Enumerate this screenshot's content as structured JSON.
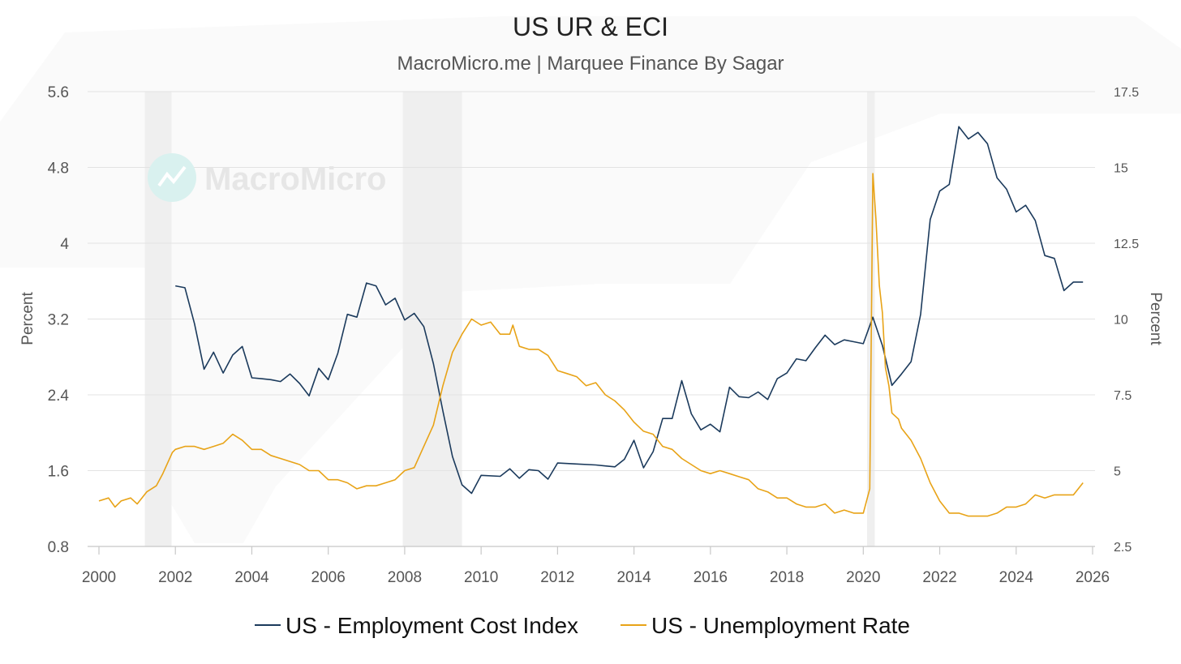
{
  "chart_data": {
    "type": "line",
    "title": "US UR & ECI",
    "subtitle": "MacroMicro.me | Marquee Finance By Sagar",
    "watermark": "MacroMicro",
    "xlabel": "",
    "xlim": [
      2000,
      2026
    ],
    "x_ticks": [
      "2000",
      "2002",
      "2004",
      "2006",
      "2008",
      "2010",
      "2012",
      "2014",
      "2016",
      "2018",
      "2020",
      "2022",
      "2024",
      "2026"
    ],
    "y_left": {
      "label": "Percent",
      "ylim": [
        0.8,
        5.6
      ],
      "ticks": [
        "0.8",
        "1.6",
        "2.4",
        "3.2",
        "4",
        "4.8",
        "5.6"
      ]
    },
    "y_right": {
      "label": "Percent",
      "ylim": [
        2.5,
        17.5
      ],
      "ticks": [
        "2.5",
        "5",
        "7.5",
        "10",
        "12.5",
        "15",
        "17.5"
      ]
    },
    "grid": true,
    "recessions": [
      [
        2001.2,
        2001.9
      ],
      [
        2007.95,
        2009.5
      ],
      [
        2020.1,
        2020.3
      ]
    ],
    "legend": {
      "position": "bottom",
      "entries": [
        "US - Employment Cost Index",
        "US - Unemployment Rate"
      ]
    },
    "series": [
      {
        "name": "US - Employment Cost Index",
        "axis": "left",
        "color": "#1b3a5c",
        "points": [
          [
            2002.0,
            3.55
          ],
          [
            2002.25,
            3.53
          ],
          [
            2002.5,
            3.15
          ],
          [
            2002.75,
            2.67
          ],
          [
            2003.0,
            2.85
          ],
          [
            2003.25,
            2.63
          ],
          [
            2003.5,
            2.82
          ],
          [
            2003.75,
            2.91
          ],
          [
            2004.0,
            2.58
          ],
          [
            2004.25,
            2.57
          ],
          [
            2004.5,
            2.56
          ],
          [
            2004.75,
            2.54
          ],
          [
            2005.0,
            2.62
          ],
          [
            2005.25,
            2.52
          ],
          [
            2005.5,
            2.39
          ],
          [
            2005.75,
            2.68
          ],
          [
            2006.0,
            2.56
          ],
          [
            2006.25,
            2.84
          ],
          [
            2006.5,
            3.25
          ],
          [
            2006.75,
            3.22
          ],
          [
            2007.0,
            3.58
          ],
          [
            2007.25,
            3.55
          ],
          [
            2007.5,
            3.35
          ],
          [
            2007.75,
            3.42
          ],
          [
            2008.0,
            3.19
          ],
          [
            2008.25,
            3.26
          ],
          [
            2008.5,
            3.12
          ],
          [
            2008.75,
            2.73
          ],
          [
            2009.0,
            2.23
          ],
          [
            2009.25,
            1.75
          ],
          [
            2009.5,
            1.45
          ],
          [
            2009.75,
            1.36
          ],
          [
            2010.0,
            1.55
          ],
          [
            2010.5,
            1.54
          ],
          [
            2010.75,
            1.62
          ],
          [
            2011.0,
            1.52
          ],
          [
            2011.25,
            1.61
          ],
          [
            2011.5,
            1.6
          ],
          [
            2011.75,
            1.51
          ],
          [
            2012.0,
            1.68
          ],
          [
            2012.5,
            1.67
          ],
          [
            2013.0,
            1.66
          ],
          [
            2013.25,
            1.65
          ],
          [
            2013.5,
            1.64
          ],
          [
            2013.75,
            1.72
          ],
          [
            2014.0,
            1.92
          ],
          [
            2014.25,
            1.63
          ],
          [
            2014.5,
            1.8
          ],
          [
            2014.75,
            2.15
          ],
          [
            2015.0,
            2.15
          ],
          [
            2015.25,
            2.55
          ],
          [
            2015.5,
            2.2
          ],
          [
            2015.75,
            2.03
          ],
          [
            2016.0,
            2.09
          ],
          [
            2016.25,
            2.01
          ],
          [
            2016.5,
            2.48
          ],
          [
            2016.75,
            2.38
          ],
          [
            2017.0,
            2.37
          ],
          [
            2017.25,
            2.43
          ],
          [
            2017.5,
            2.35
          ],
          [
            2017.75,
            2.57
          ],
          [
            2018.0,
            2.63
          ],
          [
            2018.25,
            2.78
          ],
          [
            2018.5,
            2.76
          ],
          [
            2018.75,
            2.9
          ],
          [
            2019.0,
            3.03
          ],
          [
            2019.25,
            2.93
          ],
          [
            2019.5,
            2.98
          ],
          [
            2019.75,
            2.96
          ],
          [
            2020.0,
            2.94
          ],
          [
            2020.25,
            3.22
          ],
          [
            2020.5,
            2.92
          ],
          [
            2020.75,
            2.5
          ],
          [
            2021.0,
            2.62
          ],
          [
            2021.25,
            2.75
          ],
          [
            2021.5,
            3.25
          ],
          [
            2021.75,
            4.25
          ],
          [
            2022.0,
            4.55
          ],
          [
            2022.25,
            4.62
          ],
          [
            2022.5,
            5.23
          ],
          [
            2022.75,
            5.1
          ],
          [
            2023.0,
            5.17
          ],
          [
            2023.25,
            5.05
          ],
          [
            2023.5,
            4.69
          ],
          [
            2023.75,
            4.57
          ],
          [
            2024.0,
            4.33
          ],
          [
            2024.25,
            4.4
          ],
          [
            2024.5,
            4.24
          ],
          [
            2024.75,
            3.87
          ],
          [
            2025.0,
            3.84
          ],
          [
            2025.25,
            3.5
          ],
          [
            2025.5,
            3.59
          ],
          [
            2025.75,
            3.59
          ]
        ]
      },
      {
        "name": "US - Unemployment Rate",
        "axis": "right",
        "color": "#e8a317",
        "points": [
          [
            2000.0,
            4.0
          ],
          [
            2000.25,
            4.1
          ],
          [
            2000.42,
            3.8
          ],
          [
            2000.58,
            4.0
          ],
          [
            2000.83,
            4.1
          ],
          [
            2001.0,
            3.9
          ],
          [
            2001.25,
            4.3
          ],
          [
            2001.5,
            4.5
          ],
          [
            2001.67,
            4.9
          ],
          [
            2001.92,
            5.6
          ],
          [
            2002.0,
            5.7
          ],
          [
            2002.25,
            5.8
          ],
          [
            2002.5,
            5.8
          ],
          [
            2002.75,
            5.7
          ],
          [
            2003.0,
            5.8
          ],
          [
            2003.25,
            5.9
          ],
          [
            2003.5,
            6.2
          ],
          [
            2003.75,
            6.0
          ],
          [
            2004.0,
            5.7
          ],
          [
            2004.25,
            5.7
          ],
          [
            2004.5,
            5.5
          ],
          [
            2004.75,
            5.4
          ],
          [
            2005.0,
            5.3
          ],
          [
            2005.25,
            5.2
          ],
          [
            2005.5,
            5.0
          ],
          [
            2005.75,
            5.0
          ],
          [
            2006.0,
            4.7
          ],
          [
            2006.25,
            4.7
          ],
          [
            2006.5,
            4.6
          ],
          [
            2006.75,
            4.4
          ],
          [
            2007.0,
            4.5
          ],
          [
            2007.25,
            4.5
          ],
          [
            2007.5,
            4.6
          ],
          [
            2007.75,
            4.7
          ],
          [
            2008.0,
            5.0
          ],
          [
            2008.25,
            5.1
          ],
          [
            2008.5,
            5.8
          ],
          [
            2008.75,
            6.5
          ],
          [
            2009.0,
            7.8
          ],
          [
            2009.25,
            8.9
          ],
          [
            2009.5,
            9.5
          ],
          [
            2009.75,
            10.0
          ],
          [
            2010.0,
            9.8
          ],
          [
            2010.25,
            9.9
          ],
          [
            2010.5,
            9.5
          ],
          [
            2010.75,
            9.5
          ],
          [
            2010.83,
            9.8
          ],
          [
            2011.0,
            9.1
          ],
          [
            2011.25,
            9.0
          ],
          [
            2011.5,
            9.0
          ],
          [
            2011.75,
            8.8
          ],
          [
            2012.0,
            8.3
          ],
          [
            2012.25,
            8.2
          ],
          [
            2012.5,
            8.1
          ],
          [
            2012.75,
            7.8
          ],
          [
            2013.0,
            7.9
          ],
          [
            2013.25,
            7.5
          ],
          [
            2013.5,
            7.3
          ],
          [
            2013.75,
            7.0
          ],
          [
            2014.0,
            6.6
          ],
          [
            2014.25,
            6.3
          ],
          [
            2014.5,
            6.2
          ],
          [
            2014.75,
            5.8
          ],
          [
            2015.0,
            5.7
          ],
          [
            2015.25,
            5.4
          ],
          [
            2015.5,
            5.2
          ],
          [
            2015.75,
            5.0
          ],
          [
            2016.0,
            4.9
          ],
          [
            2016.25,
            5.0
          ],
          [
            2016.5,
            4.9
          ],
          [
            2016.75,
            4.8
          ],
          [
            2017.0,
            4.7
          ],
          [
            2017.25,
            4.4
          ],
          [
            2017.5,
            4.3
          ],
          [
            2017.75,
            4.1
          ],
          [
            2018.0,
            4.1
          ],
          [
            2018.25,
            3.9
          ],
          [
            2018.5,
            3.8
          ],
          [
            2018.75,
            3.8
          ],
          [
            2019.0,
            3.9
          ],
          [
            2019.25,
            3.6
          ],
          [
            2019.5,
            3.7
          ],
          [
            2019.75,
            3.6
          ],
          [
            2020.0,
            3.6
          ],
          [
            2020.17,
            4.4
          ],
          [
            2020.25,
            14.8
          ],
          [
            2020.33,
            13.3
          ],
          [
            2020.42,
            11.1
          ],
          [
            2020.5,
            10.2
          ],
          [
            2020.58,
            8.4
          ],
          [
            2020.67,
            7.8
          ],
          [
            2020.75,
            6.9
          ],
          [
            2020.92,
            6.7
          ],
          [
            2021.0,
            6.4
          ],
          [
            2021.25,
            6.0
          ],
          [
            2021.5,
            5.4
          ],
          [
            2021.75,
            4.6
          ],
          [
            2022.0,
            4.0
          ],
          [
            2022.25,
            3.6
          ],
          [
            2022.5,
            3.6
          ],
          [
            2022.75,
            3.5
          ],
          [
            2023.0,
            3.5
          ],
          [
            2023.25,
            3.5
          ],
          [
            2023.5,
            3.6
          ],
          [
            2023.75,
            3.8
          ],
          [
            2024.0,
            3.8
          ],
          [
            2024.25,
            3.9
          ],
          [
            2024.5,
            4.2
          ],
          [
            2024.75,
            4.1
          ],
          [
            2025.0,
            4.2
          ],
          [
            2025.25,
            4.2
          ],
          [
            2025.5,
            4.2
          ],
          [
            2025.75,
            4.6
          ]
        ]
      }
    ]
  }
}
